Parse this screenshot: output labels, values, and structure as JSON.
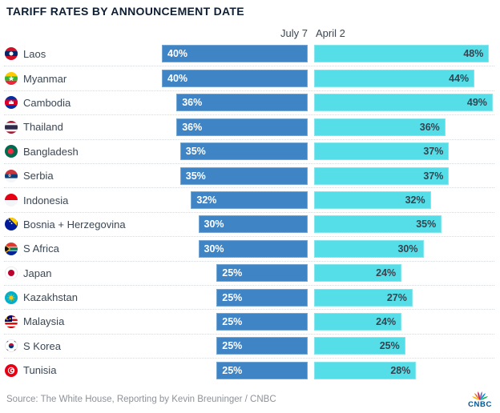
{
  "title": "TARIFF RATES BY ANNOUNCEMENT DATE",
  "chart_data": {
    "type": "bar",
    "orientation": "horizontal",
    "title": "TARIFF RATES BY ANNOUNCEMENT DATE",
    "categories": [
      "Laos",
      "Myanmar",
      "Cambodia",
      "Thailand",
      "Bangladesh",
      "Serbia",
      "Indonesia",
      "Bosnia + Herzegovina",
      "S Africa",
      "Japan",
      "Kazakhstan",
      "Malaysia",
      "S Korea",
      "Tunisia"
    ],
    "flag_icons": [
      "laos",
      "myanmar",
      "cambodia",
      "thailand",
      "bangladesh",
      "serbia",
      "indonesia",
      "bosnia",
      "safrica",
      "japan",
      "kazakhstan",
      "malaysia",
      "skorea",
      "tunisia"
    ],
    "series": [
      {
        "name": "July 7",
        "values": [
          40,
          40,
          36,
          36,
          35,
          35,
          32,
          30,
          30,
          25,
          25,
          25,
          25,
          25
        ]
      },
      {
        "name": "April 2",
        "values": [
          48,
          44,
          49,
          36,
          37,
          37,
          32,
          35,
          30,
          24,
          27,
          24,
          25,
          28
        ]
      }
    ],
    "value_suffix": "%",
    "xlim": [
      0,
      49
    ],
    "grid": false,
    "legend_position": "column-headers"
  },
  "footer": {
    "source": "Source: The White House, Reporting by Kevin Breuninger / CNBC",
    "logo_text": "CNBC",
    "logo_icon": "cnbc-peacock-icon"
  },
  "colors": {
    "july7_bar": "#3F84C5",
    "april2_bar": "#55DEE7",
    "title_text": "#0E1E33",
    "country_text": "#3B4754",
    "bar_label_on_blue": "#FFFFFF",
    "bar_label_on_cyan": "#37434F",
    "separator": "#D8DBDE",
    "source_text": "#8D9299",
    "cnbc_blue": "#005594"
  }
}
